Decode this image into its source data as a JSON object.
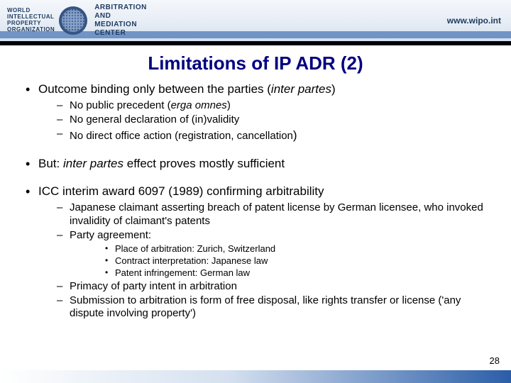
{
  "header": {
    "org_line1": "WORLD",
    "org_line2": "INTELLECTUAL",
    "org_line3": "PROPERTY",
    "org_line4": "ORGANIZATION",
    "center_line1": "ARBITRATION",
    "center_line2": "AND",
    "center_line3": "MEDIATION",
    "center_line4": "CENTER",
    "url": "www.wipo.int"
  },
  "title": "Limitations of IP ADR (2)",
  "bullet1": {
    "text_a": "Outcome binding only between the parties (",
    "text_b": "inter partes",
    "text_c": ")",
    "sub1_a": "No public precedent (",
    "sub1_b": "erga omnes",
    "sub1_c": ")",
    "sub2": "No general declaration of (in)validity",
    "sub3_a": "No direct office action (registration, cancellation",
    "sub3_b": ")"
  },
  "bullet2": {
    "text_a": "But: ",
    "text_b": "inter partes",
    "text_c": " effect proves mostly sufficient"
  },
  "bullet3": {
    "text": "ICC interim award 6097 (1989) confirming arbitrability",
    "sub1": "Japanese claimant asserting breach of patent license by German licensee, who invoked invalidity of claimant's patents",
    "sub2": "Party agreement:",
    "sub2_1": "Place of arbitration:  Zurich, Switzerland",
    "sub2_2": "Contract interpretation:  Japanese law",
    "sub2_3_a": "Patent infringement:  German ",
    "sub2_3_b": "law",
    "sub3": "Primacy of party intent in arbitration",
    "sub4": "Submission to arbitration is form of free disposal, like rights transfer or license  ('any dispute involving property')"
  },
  "page_number": "28",
  "colors": {
    "title": "#000080",
    "header_text": "#1e3a5f",
    "stripe": "#2b5da8"
  }
}
